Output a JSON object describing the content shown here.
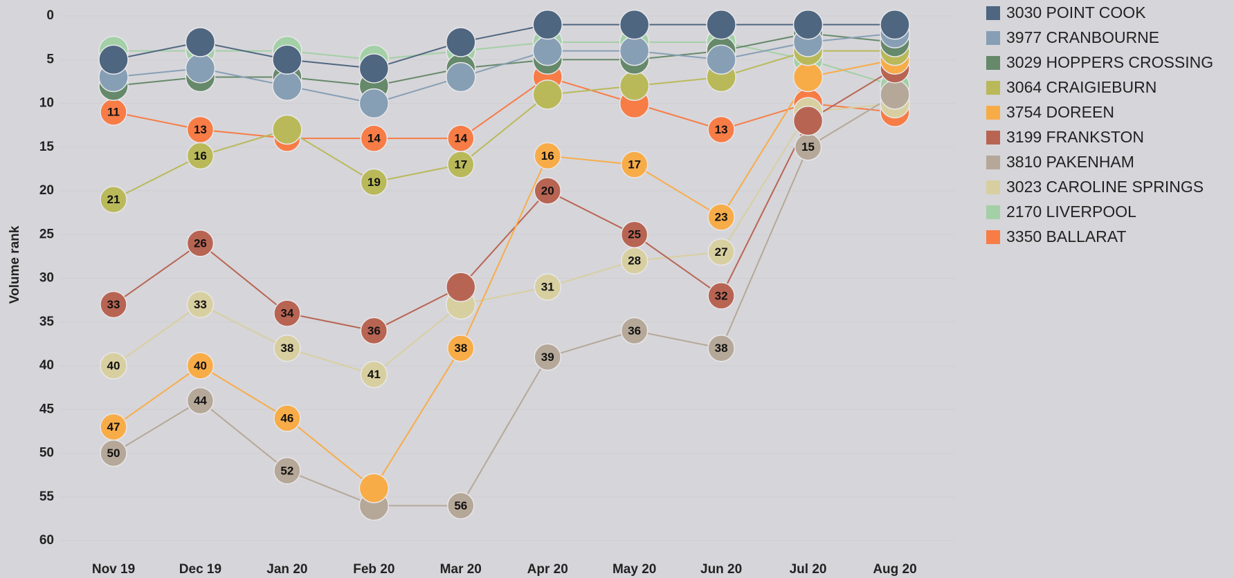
{
  "chart_data": {
    "type": "bump",
    "ylabel": "Volume rank",
    "categories": [
      "Nov 19",
      "Dec 19",
      "Jan 20",
      "Feb 20",
      "Mar 20",
      "Apr 20",
      "May 20",
      "Jun 20",
      "Jul 20",
      "Aug 20"
    ],
    "ylim": [
      0,
      60
    ],
    "yticks": [
      0,
      5,
      10,
      15,
      20,
      25,
      30,
      35,
      40,
      45,
      50,
      55,
      60
    ],
    "y_inverted": true,
    "legend": "right",
    "series": [
      {
        "name": "3030 POINT COOK",
        "color": "#4e6680",
        "values": [
          5,
          3,
          5,
          6,
          3,
          1,
          1,
          1,
          1,
          1
        ],
        "value_labels": [
          null,
          null,
          null,
          null,
          null,
          null,
          null,
          null,
          null,
          null
        ]
      },
      {
        "name": "3977 CRANBOURNE",
        "color": "#879fb5",
        "values": [
          7,
          6,
          8,
          10,
          7,
          4,
          4,
          5,
          3,
          2
        ],
        "value_labels": [
          null,
          null,
          null,
          null,
          null,
          null,
          null,
          null,
          null,
          null
        ]
      },
      {
        "name": "3029 HOPPERS CROSSING",
        "color": "#65896a",
        "values": [
          8,
          7,
          7,
          8,
          6,
          5,
          5,
          4,
          2,
          3
        ],
        "value_labels": [
          null,
          null,
          null,
          null,
          null,
          null,
          null,
          null,
          null,
          null
        ]
      },
      {
        "name": "3064 CRAIGIEBURN",
        "color": "#b9b95a",
        "values": [
          21,
          16,
          13,
          19,
          17,
          9,
          8,
          7,
          4,
          4
        ],
        "value_labels": [
          "21",
          "16",
          null,
          "19",
          "17",
          null,
          null,
          null,
          null,
          null
        ]
      },
      {
        "name": "3754 DOREEN",
        "color": "#f8ac48",
        "values": [
          47,
          40,
          46,
          54,
          38,
          16,
          17,
          23,
          7,
          5
        ],
        "value_labels": [
          "47",
          "40",
          "46",
          null,
          "38",
          "16",
          "17",
          "23",
          null,
          null
        ]
      },
      {
        "name": "3199 FRANKSTON",
        "color": "#b86453",
        "values": [
          33,
          26,
          34,
          36,
          31,
          20,
          25,
          32,
          12,
          6
        ],
        "value_labels": [
          "33",
          "26",
          "34",
          "36",
          null,
          "20",
          "25",
          "32",
          null,
          null
        ]
      },
      {
        "name": "3810 PAKENHAM",
        "color": "#b5a898",
        "values": [
          50,
          44,
          52,
          56,
          56,
          39,
          36,
          38,
          15,
          9
        ],
        "value_labels": [
          "50",
          "44",
          "52",
          null,
          "56",
          "39",
          "36",
          "38",
          "15",
          null
        ]
      },
      {
        "name": "3023 CAROLINE SPRINGS",
        "color": "#d8cfa0",
        "values": [
          40,
          33,
          38,
          41,
          33,
          31,
          28,
          27,
          11,
          10
        ],
        "value_labels": [
          "40",
          "33",
          "38",
          "41",
          null,
          "31",
          "28",
          "27",
          null,
          null
        ]
      },
      {
        "name": "2170 LIVERPOOL",
        "color": "#a3d0a6",
        "values": [
          4,
          4,
          4,
          5,
          4,
          3,
          3,
          3,
          5,
          8
        ],
        "value_labels": [
          null,
          null,
          null,
          null,
          null,
          null,
          null,
          null,
          null,
          null
        ]
      },
      {
        "name": "3350 BALLARAT",
        "color": "#f77c46",
        "values": [
          11,
          13,
          14,
          14,
          14,
          7,
          10,
          13,
          10,
          11
        ],
        "value_labels": [
          "11",
          "13",
          "14",
          "14",
          "14",
          null,
          null,
          "13",
          null,
          null
        ]
      }
    ]
  }
}
